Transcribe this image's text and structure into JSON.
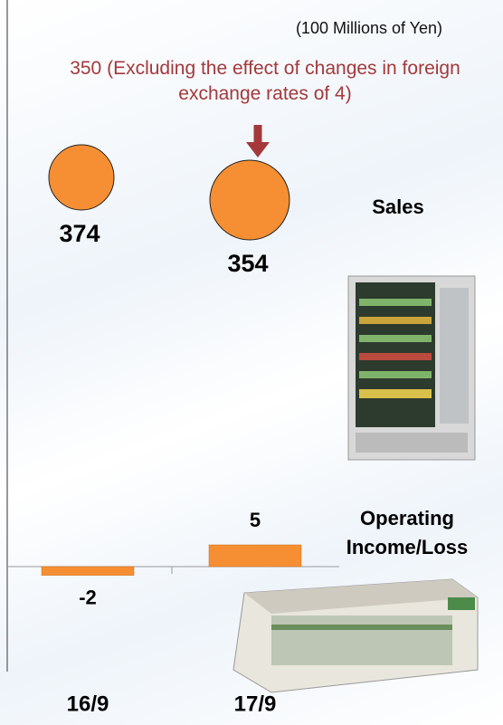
{
  "unit": "(100 Millions of Yen)",
  "annotation": "350 (Excluding the effect of changes in foreign exchange rates of 4)",
  "chart_data": [
    {
      "type": "circle",
      "title": "Sales",
      "values": [
        374,
        354
      ],
      "color": "#f68f33"
    },
    {
      "type": "bar",
      "title": "Operating Income/Loss",
      "categories": [
        "16/9",
        "17/9"
      ],
      "values": [
        -2,
        5
      ],
      "color": "#f68f33"
    }
  ]
}
